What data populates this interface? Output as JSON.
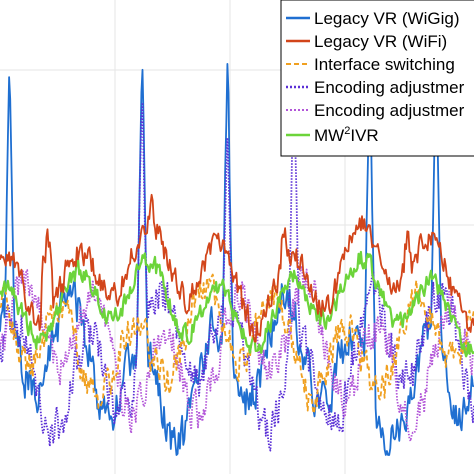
{
  "chart_data": {
    "type": "line",
    "title": "",
    "xlabel": "",
    "ylabel": "",
    "grid": true,
    "legend": "top-right",
    "ylim": [
      0,
      1
    ],
    "series": [
      {
        "name": "Legacy VR (WiGig)",
        "color": "#1f6fd1",
        "style": "solid",
        "peaks": [
          [
            0.02,
            0.88
          ],
          [
            0.3,
            0.9
          ],
          [
            0.48,
            0.9
          ],
          [
            0.78,
            0.85
          ],
          [
            0.92,
            0.88
          ]
        ]
      },
      {
        "name": "Legacy VR (WiFi)",
        "color": "#d2451a",
        "style": "solid",
        "peaks": [
          [
            0.1,
            0.5
          ],
          [
            0.32,
            0.6
          ],
          [
            0.6,
            0.52
          ],
          [
            0.86,
            0.5
          ]
        ]
      },
      {
        "name": "Interface switching",
        "color": "#f0a020",
        "style": "dashed",
        "peaks": []
      },
      {
        "name": "Encoding adjustmer",
        "color": "#5a2fd6",
        "style": "dotted",
        "peaks": [
          [
            0.3,
            0.82
          ],
          [
            0.48,
            0.72
          ],
          [
            0.62,
            0.85
          ]
        ]
      },
      {
        "name": "Encoding adjustmer",
        "color": "#b255d8",
        "style": "dotted",
        "peaks": []
      },
      {
        "name_text": "MW",
        "name_sup": "2",
        "name_rest": "IVR",
        "color": "#6cd43a",
        "style": "solid",
        "peaks": []
      }
    ]
  }
}
